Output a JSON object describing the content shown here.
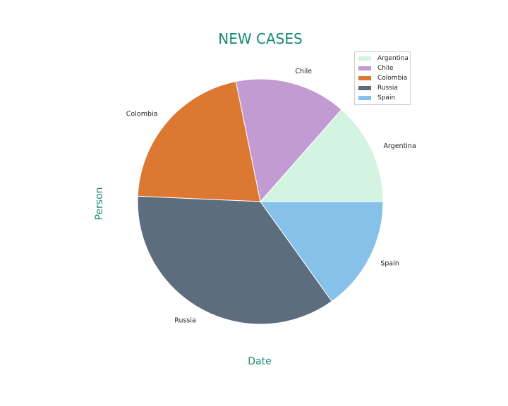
{
  "chart_data": {
    "type": "pie",
    "title": "NEW CASES",
    "xlabel": "Date",
    "ylabel": "Person",
    "categories": [
      "Argentina",
      "Chile",
      "Colombia",
      "Russia",
      "Spain"
    ],
    "values": [
      13.5,
      14.7,
      21.1,
      35.6,
      15.1
    ],
    "colors": [
      "#d4f4e2",
      "#c39bd3",
      "#dd7832",
      "#5d6d7e",
      "#85c1e9"
    ],
    "legend": "top-right",
    "start_angle": 0
  }
}
